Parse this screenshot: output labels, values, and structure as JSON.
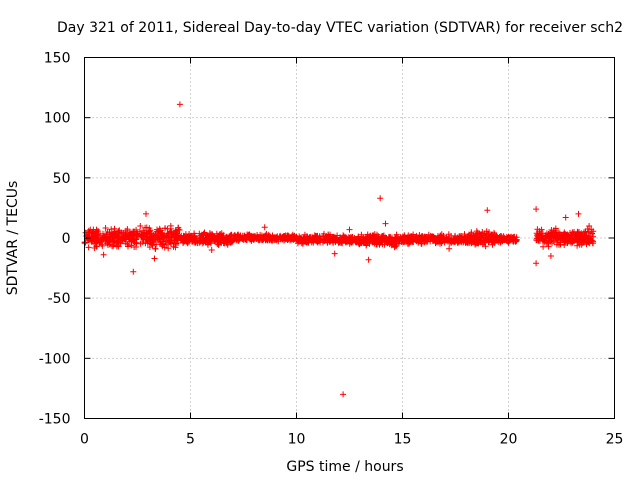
{
  "chart_data": {
    "type": "scatter",
    "title": "Day 321 of 2011, Sidereal Day-to-day VTEC variation (SDTVAR) for receiver sch2",
    "xlabel": "GPS time / hours",
    "ylabel": "SDTVAR / TECUs",
    "xlim": [
      0,
      25
    ],
    "ylim": [
      -150,
      150
    ],
    "x_ticks": [
      0,
      5,
      10,
      15,
      20,
      25
    ],
    "y_ticks": [
      -150,
      -100,
      -50,
      0,
      50,
      100,
      150
    ],
    "grid": true,
    "marker": "+",
    "series": [
      {
        "name": "sch2",
        "color": "#ff0000",
        "segments": [
          {
            "x_start": 0.0,
            "x_end": 2.0,
            "center": 0,
            "spread": 8
          },
          {
            "x_start": 2.0,
            "x_end": 4.5,
            "center": 1,
            "spread": 9
          },
          {
            "x_start": 4.5,
            "x_end": 7.0,
            "center": -1,
            "spread": 5
          },
          {
            "x_start": 7.0,
            "x_end": 10.0,
            "center": 0,
            "spread": 3
          },
          {
            "x_start": 10.0,
            "x_end": 12.5,
            "center": -1,
            "spread": 4
          },
          {
            "x_start": 12.5,
            "x_end": 15.0,
            "center": -2,
            "spread": 5
          },
          {
            "x_start": 15.0,
            "x_end": 18.0,
            "center": -1,
            "spread": 4
          },
          {
            "x_start": 18.0,
            "x_end": 19.5,
            "center": 0,
            "spread": 6
          },
          {
            "x_start": 19.5,
            "x_end": 20.4,
            "center": -1,
            "spread": 3
          },
          {
            "x_start": 21.3,
            "x_end": 24.0,
            "center": 0,
            "spread": 7
          }
        ],
        "outliers": [
          {
            "x": 4.5,
            "y": 111
          },
          {
            "x": 12.2,
            "y": -130
          },
          {
            "x": 13.95,
            "y": 33
          },
          {
            "x": 19.0,
            "y": 23
          },
          {
            "x": 21.3,
            "y": 24
          },
          {
            "x": 2.9,
            "y": 20
          },
          {
            "x": 22.7,
            "y": 17
          },
          {
            "x": 23.3,
            "y": 20
          },
          {
            "x": 2.3,
            "y": -28
          },
          {
            "x": 21.3,
            "y": -21
          },
          {
            "x": 13.4,
            "y": -18
          },
          {
            "x": 14.2,
            "y": 12
          },
          {
            "x": 12.5,
            "y": 7
          },
          {
            "x": 8.5,
            "y": 9
          },
          {
            "x": 0.9,
            "y": -14
          },
          {
            "x": 22.0,
            "y": -15
          },
          {
            "x": 3.3,
            "y": -17
          },
          {
            "x": 11.8,
            "y": -13
          },
          {
            "x": 17.2,
            "y": -9
          },
          {
            "x": 6.0,
            "y": -10
          },
          {
            "x": 23.8,
            "y": 10
          }
        ]
      }
    ]
  }
}
